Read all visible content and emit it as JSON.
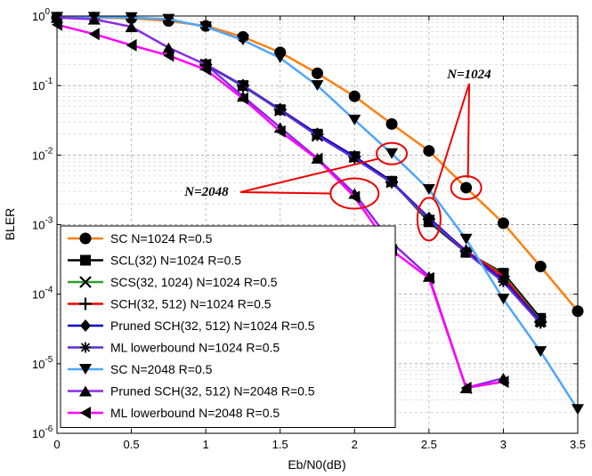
{
  "chart_data": {
    "type": "line",
    "xlabel": "Eb/N0(dB)",
    "ylabel": "BLER",
    "xlim": [
      0,
      3.5
    ],
    "ylim": [
      1e-06,
      1
    ],
    "yscale": "log",
    "grid": true,
    "legend_position": "bottom-left",
    "x_ticks": [
      "0",
      "0.5",
      "1",
      "1.5",
      "2",
      "2.5",
      "3",
      "3.5"
    ],
    "y_ticks": [
      {
        "base": "10",
        "exp": "0",
        "value": 1
      },
      {
        "base": "10",
        "exp": "-1",
        "value": 0.1
      },
      {
        "base": "10",
        "exp": "-2",
        "value": 0.01
      },
      {
        "base": "10",
        "exp": "-3",
        "value": 0.001
      },
      {
        "base": "10",
        "exp": "-4",
        "value": 0.0001
      },
      {
        "base": "10",
        "exp": "-5",
        "value": 1e-05
      },
      {
        "base": "10",
        "exp": "-6",
        "value": 1e-06
      }
    ],
    "series": [
      {
        "name": "SC N=1024 R=0.5",
        "color": "#ff7f0e",
        "marker": "circle",
        "x": [
          0,
          0.25,
          0.5,
          0.75,
          1,
          1.25,
          1.5,
          1.75,
          2,
          2.25,
          2.5,
          2.75,
          3,
          3.25,
          3.5
        ],
        "y": [
          0.95,
          0.95,
          0.93,
          0.85,
          0.72,
          0.5,
          0.3,
          0.15,
          0.07,
          0.028,
          0.0115,
          0.0034,
          0.00105,
          0.00025,
          5.7e-05
        ]
      },
      {
        "name": "SCL(32) N=1024 R=0.5",
        "color": "#000000",
        "marker": "square",
        "x": [
          1,
          1.25,
          1.5,
          1.75,
          2,
          2.25,
          2.5,
          2.75,
          3,
          3.25
        ],
        "y": [
          0.2,
          0.1,
          0.045,
          0.02,
          0.0095,
          0.0042,
          0.0011,
          0.0004,
          0.0002,
          4.5e-05
        ]
      },
      {
        "name": "SCS(32, 1024) N=1024 R=0.5",
        "color": "#2ca02c",
        "marker": "x",
        "x": [
          1,
          1.25,
          1.5,
          1.75,
          2,
          2.25,
          2.5,
          2.75,
          3,
          3.25
        ],
        "y": [
          0.2,
          0.098,
          0.044,
          0.019,
          0.0094,
          0.0041,
          0.00115,
          0.00041,
          0.00019,
          4.1e-05
        ]
      },
      {
        "name": "SCH(32, 512)  N=1024 R=0.5",
        "color": "#ff0000",
        "marker": "plus",
        "x": [
          1,
          1.25,
          1.5,
          1.75,
          2,
          2.25,
          2.5,
          2.75,
          3,
          3.25
        ],
        "y": [
          0.2,
          0.1,
          0.045,
          0.02,
          0.0095,
          0.0041,
          0.0012,
          0.00042,
          0.00018,
          4e-05
        ]
      },
      {
        "name": "Pruned SCH(32, 512)  N=1024 R=0.5",
        "color": "#0000cc",
        "marker": "diamond",
        "x": [
          1,
          1.25,
          1.5,
          1.75,
          2,
          2.25,
          2.5,
          2.75,
          3,
          3.25
        ],
        "y": [
          0.2,
          0.1,
          0.045,
          0.02,
          0.0095,
          0.0041,
          0.00125,
          0.00041,
          0.00016,
          4e-05
        ]
      },
      {
        "name": "ML lowerbound N=1024 R=0.5",
        "color": "#5b2cd6",
        "marker": "asterisk",
        "x": [
          1,
          1.25,
          1.5,
          1.75,
          2,
          2.25,
          2.5,
          2.75,
          3,
          3.25
        ],
        "y": [
          0.2,
          0.1,
          0.044,
          0.019,
          0.009,
          0.004,
          0.0012,
          0.0004,
          0.00015,
          3.8e-05
        ]
      },
      {
        "name": "SC N=2048 R=0.5",
        "color": "#4da6ff",
        "marker": "triangle-down",
        "x": [
          0,
          0.25,
          0.5,
          0.75,
          1,
          1.25,
          1.5,
          1.75,
          2,
          2.25,
          2.5,
          2.75,
          3,
          3.25,
          3.5
        ],
        "y": [
          0.96,
          0.96,
          0.95,
          0.9,
          0.7,
          0.45,
          0.25,
          0.1,
          0.032,
          0.0105,
          0.0032,
          0.00062,
          8.5e-05,
          1.5e-05,
          2.2e-06
        ]
      },
      {
        "name": "Pruned SCH(32, 512)  N=2048 R=0.5",
        "color": "#8a2be2",
        "marker": "triangle-up",
        "x": [
          0,
          0.25,
          0.5,
          0.75,
          1,
          1.25,
          1.5,
          1.75,
          2,
          2.25,
          2.5,
          2.75,
          3
        ],
        "y": [
          0.95,
          0.9,
          0.7,
          0.35,
          0.2,
          0.07,
          0.025,
          0.009,
          0.0028,
          0.00055,
          0.00018,
          4.5e-06,
          6.2e-06
        ]
      },
      {
        "name": "ML lowerbound N=2048 R=0.5",
        "color": "#ff00ff",
        "marker": "triangle-left",
        "x": [
          0,
          0.25,
          0.5,
          0.75,
          1,
          1.25,
          1.5,
          1.75,
          2,
          2.25,
          2.5,
          2.75,
          3
        ],
        "y": [
          0.75,
          0.55,
          0.38,
          0.27,
          0.17,
          0.065,
          0.022,
          0.0088,
          0.0025,
          0.00043,
          0.00017,
          4.5e-06,
          5.5e-06
        ]
      }
    ],
    "annotations": [
      {
        "text": "N=1024",
        "points_to": [
          [
            2.75,
            0.0034
          ],
          [
            2.5,
            0.0012
          ]
        ]
      },
      {
        "text": "N=2048",
        "points_to": [
          [
            2.25,
            0.0105
          ],
          [
            2.0,
            0.0028
          ]
        ]
      }
    ]
  }
}
